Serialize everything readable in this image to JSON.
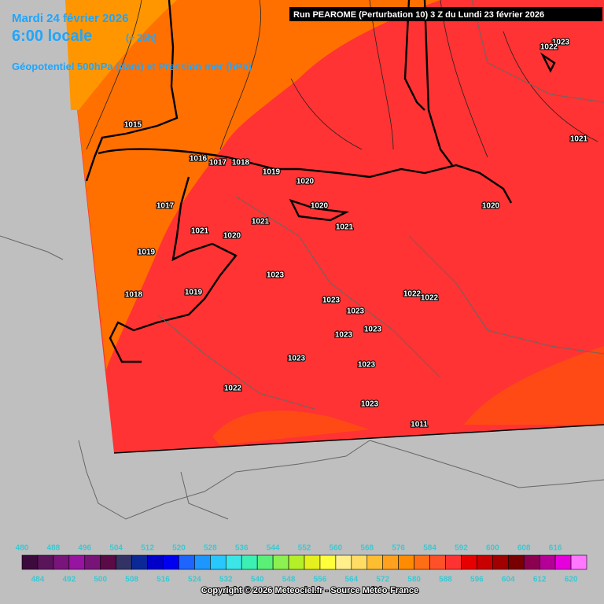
{
  "header": {
    "date": "Mardi 24 février 2026",
    "time": "6:00 locale",
    "lead": "(+ 26h)",
    "field": "Géopotentiel 500hPa (dam) et Pression mer (hPa)",
    "run": "Run PEAROME (Perturbation 10) 3 Z du Lundi 23 février 2026"
  },
  "map": {
    "isobar_labels": [
      1023,
      1022,
      1021,
      1015,
      1016,
      1017,
      1018,
      1019,
      1020,
      1017,
      1020,
      1020,
      1021,
      1020,
      1021,
      1021,
      1019,
      1023,
      1018,
      1019,
      1023,
      1022,
      1022,
      1023,
      1023,
      1023,
      1023,
      1023,
      1022,
      1023,
      1011
    ]
  },
  "scale": {
    "values": [
      480,
      484,
      488,
      492,
      496,
      500,
      504,
      508,
      512,
      516,
      520,
      524,
      528,
      532,
      536,
      540,
      544,
      548,
      552,
      556,
      560,
      564,
      568,
      572,
      576,
      580,
      584,
      588,
      592,
      596,
      600,
      604,
      608,
      612,
      616,
      620
    ],
    "colors": [
      "#3c0a3c",
      "#5a145a",
      "#78147a",
      "#9614a0",
      "#781478",
      "#5a0a46",
      "#323264",
      "#0a2896",
      "#0000c8",
      "#0000f0",
      "#1e64ff",
      "#1e96ff",
      "#28c8ff",
      "#3ce6e6",
      "#3cf0b4",
      "#5af078",
      "#8cf050",
      "#b4f028",
      "#e6f01e",
      "#ffff3c",
      "#fff08c",
      "#ffdc64",
      "#ffbe32",
      "#ffa01e",
      "#ff8c00",
      "#ff6e14",
      "#ff5028",
      "#ff3232",
      "#e60000",
      "#c80000",
      "#a00000",
      "#780000",
      "#8c0050",
      "#b40096",
      "#e600dc",
      "#ff78ff"
    ]
  },
  "footer": {
    "copyright": "Copyright © 2026 Meteociel.fr - Source Météo-France"
  }
}
